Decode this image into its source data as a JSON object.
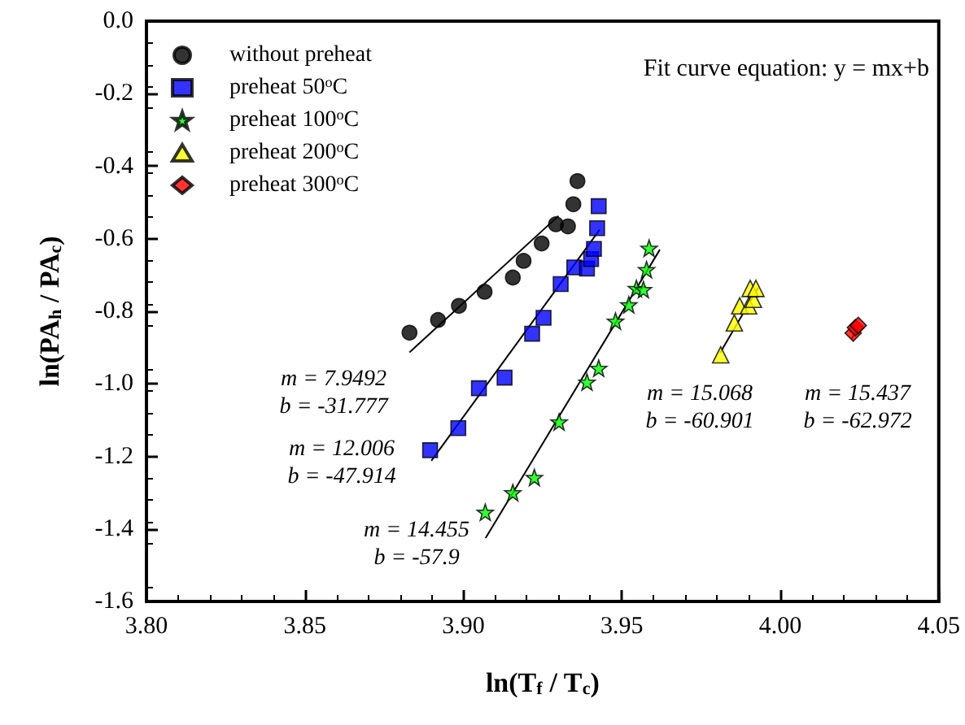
{
  "chart_data": {
    "type": "scatter",
    "xlabel": "ln(T$_{f}$ / T$_{c}$)",
    "ylabel": "ln(PA$_{h}$ / PA$_{c}$)",
    "xlim": [
      3.8,
      4.05
    ],
    "xticks": [
      {
        "value": 3.8,
        "label": "3.80"
      },
      {
        "value": 3.85,
        "label": "3.85"
      },
      {
        "value": 3.9,
        "label": "3.90"
      },
      {
        "value": 3.95,
        "label": "3.95"
      },
      {
        "value": 4.0,
        "label": "4.00"
      },
      {
        "value": 4.05,
        "label": "4.05"
      }
    ],
    "ylim": [
      -1.6,
      0
    ],
    "yticks": [
      {
        "value": -1.6,
        "label": "-1.6"
      },
      {
        "value": -1.4,
        "label": "-1.4"
      },
      {
        "value": -1.2,
        "label": "-1.2"
      },
      {
        "value": -1.0,
        "label": "-1.0"
      },
      {
        "value": -0.8,
        "label": "-0.8"
      },
      {
        "value": -0.6,
        "label": "-0.6"
      },
      {
        "value": -0.4,
        "label": "-0.4"
      },
      {
        "value": -0.2,
        "label": "-0.2"
      },
      {
        "value": 0,
        "label": "0.0"
      }
    ],
    "grid": false,
    "legend": "top left",
    "series": [
      {
        "name": "without preheat",
        "color": "#000000",
        "marker": "circle",
        "x": [
          3.883,
          3.892,
          3.8986,
          3.9067,
          3.9156,
          3.919,
          3.9247,
          3.9292,
          3.933,
          3.9347,
          3.936
        ],
        "values": [
          -0.859,
          -0.824,
          -0.785,
          -0.746,
          -0.707,
          -0.661,
          -0.613,
          -0.56,
          -0.566,
          -0.505,
          -0.441
        ]
      },
      {
        "name": "preheat 50$^{o}$C",
        "color": "#0000ff",
        "marker": "square",
        "x": [
          3.8895,
          3.8984,
          3.9049,
          3.913,
          3.9217,
          3.9253,
          3.9307,
          3.935,
          3.939,
          3.9403,
          3.9412,
          3.9422,
          3.9427
        ],
        "values": [
          -1.183,
          -1.122,
          -1.012,
          -0.983,
          -0.862,
          -0.818,
          -0.725,
          -0.679,
          -0.682,
          -0.656,
          -0.628,
          -0.571,
          -0.51
        ]
      },
      {
        "name": "preheat 100$^{o}$C",
        "color": "#00ff00",
        "marker": "star",
        "x": [
          3.9069,
          3.9156,
          3.9224,
          3.9302,
          3.939,
          3.9427,
          3.948,
          3.9522,
          3.9546,
          3.9568,
          3.9578,
          3.9586
        ],
        "values": [
          -1.354,
          -1.3,
          -1.258,
          -1.105,
          -0.995,
          -0.957,
          -0.827,
          -0.782,
          -0.737,
          -0.74,
          -0.685,
          -0.626
        ]
      },
      {
        "name": "preheat 200$^{o}$C",
        "color": "#ffff00",
        "marker": "triangle",
        "x": [
          3.9812,
          3.9855,
          3.9872,
          3.99,
          3.9915,
          3.9905,
          3.9923
        ],
        "values": [
          -0.92,
          -0.832,
          -0.785,
          -0.785,
          -0.767,
          -0.737,
          -0.737
        ]
      },
      {
        "name": "preheat 300$^{o}$C",
        "color": "#ff0000",
        "marker": "diamond",
        "x": [
          4.023,
          4.0237,
          4.0246
        ],
        "values": [
          -0.86,
          -0.845,
          -0.839
        ]
      },
      {
        "type": "line",
        "color": "#000000",
        "marker": "none",
        "x": [
          3.883,
          3.93
        ],
        "values": [
          -0.913,
          -0.537
        ]
      },
      {
        "type": "line",
        "color": "#000000",
        "marker": "none",
        "x": [
          3.8899,
          3.943
        ],
        "values": [
          -1.212,
          -0.575
        ]
      },
      {
        "type": "line",
        "color": "#000000",
        "marker": "none",
        "x": [
          3.907,
          3.962
        ],
        "values": [
          -1.425,
          -0.63
        ]
      },
      {
        "type": "line",
        "color": "#000000",
        "marker": "none",
        "x": [
          3.981,
          3.993
        ],
        "values": [
          -0.915,
          -0.735
        ]
      },
      {
        "type": "line",
        "color": "#000000",
        "marker": "none",
        "x": [
          4.0225,
          4.025
        ],
        "values": [
          -0.876,
          -0.837
        ]
      }
    ],
    "annotations": [
      "Fit curve equation: y = mx+b",
      "m = 7.9492\nb = -31.777",
      "m = 12.006\nb = -47.914",
      "m = 14.455\nb = -57.9",
      "m = 15.068\nb = -60.901",
      "m = 15.437\nb = -62.972"
    ]
  }
}
